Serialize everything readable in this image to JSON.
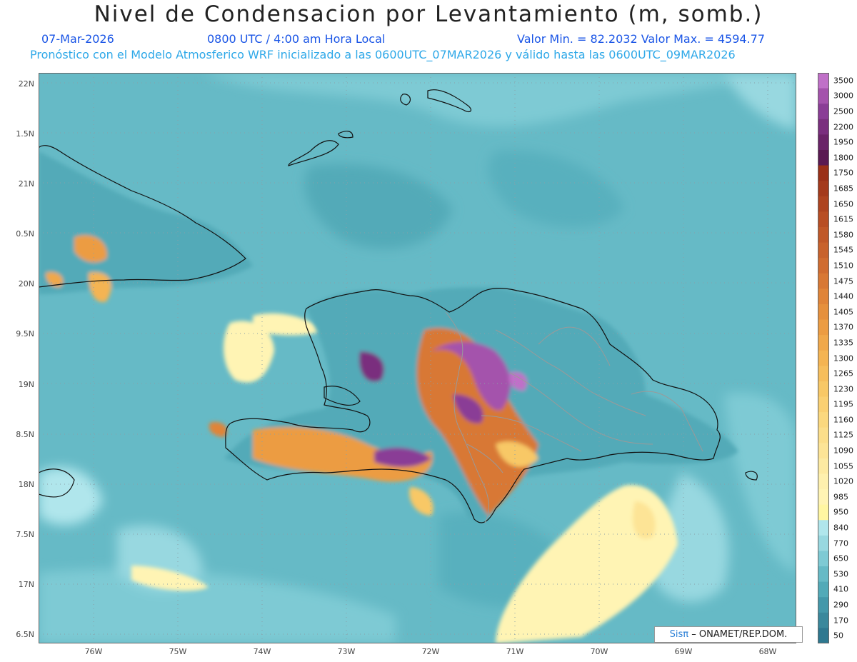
{
  "header": {
    "title": "Nivel de Condensacion por Levantamiento (m, somb.)",
    "date": "07-Mar-2026",
    "time": "0800 UTC / 4:00 am Hora Local",
    "minmax": "Valor Min. = 82.2032   Valor Max. = 4594.77",
    "description": "Pronóstico con el Modelo Atmosferico WRF inicializado a las 0600UTC_07MAR2026 y válido hasta las  0600UTC_09MAR2026"
  },
  "axes": {
    "lat_labels": [
      "22N",
      "1.5N",
      "21N",
      "0.5N",
      "20N",
      "9.5N",
      "19N",
      "8.5N",
      "18N",
      "7.5N",
      "17N",
      "6.5N"
    ],
    "lon_labels": [
      "76W",
      "75W",
      "74W",
      "73W",
      "72W",
      "71W",
      "70W",
      "69W",
      "68W"
    ]
  },
  "credit": {
    "brand": "Sisπ",
    "text": "– ONAMET/REP.DOM."
  },
  "legend": {
    "labels": [
      "3500",
      "3000",
      "2500",
      "2200",
      "1950",
      "1800",
      "1750",
      "1685",
      "1650",
      "1615",
      "1580",
      "1545",
      "1510",
      "1475",
      "1440",
      "1405",
      "1370",
      "1335",
      "1300",
      "1265",
      "1230",
      "1195",
      "1160",
      "1125",
      "1090",
      "1055",
      "1020",
      "985",
      "950",
      "840",
      "770",
      "650",
      "530",
      "410",
      "290",
      "170",
      "50"
    ],
    "colors": [
      "#c070c8",
      "#a452ac",
      "#8a3d96",
      "#7a2f7e",
      "#6a2468",
      "#5a1a52",
      "#9a3018",
      "#a43a1c",
      "#ae4420",
      "#b84e24",
      "#c05828",
      "#c8622c",
      "#d06c30",
      "#d87834",
      "#e08438",
      "#e6903c",
      "#ec9c42",
      "#f0a84a",
      "#f4b452",
      "#f6be5c",
      "#f8c866",
      "#fad072",
      "#fbd87e",
      "#fcde8a",
      "#fde496",
      "#fdeaa2",
      "#fef0ae",
      "#fff4b4",
      "#fff6a2",
      "#b0e6ec",
      "#98d8e0",
      "#7ecad4",
      "#66bac6",
      "#52aab8",
      "#4498aa",
      "#3a889c",
      "#2e7890"
    ]
  }
}
